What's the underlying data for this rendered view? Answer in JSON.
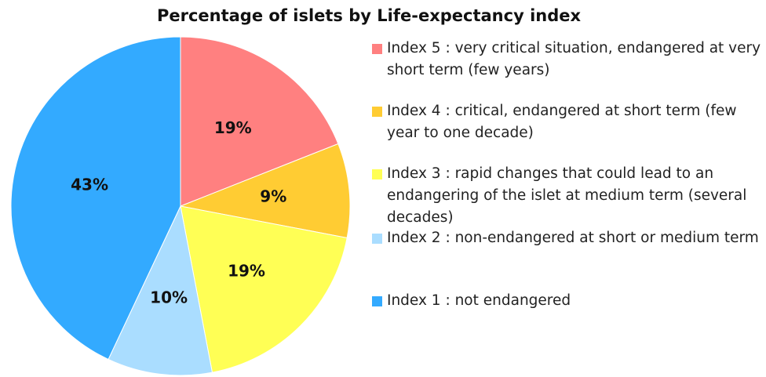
{
  "chart_data": {
    "type": "pie",
    "title": "Percentage of islets by Life-expectancy index",
    "categories": [
      "Index 5 : very critical situation, endangered at very short term (few years)",
      "Index 4 : critical, endangered at short term (few year to one decade)",
      "Index 3 : rapid changes that could lead to an endangering of the islet at medium term (several decades)",
      "Index 2 : non-endangered at short or medium term",
      "Index 1 : not endangered"
    ],
    "values": [
      19,
      9,
      19,
      10,
      43
    ],
    "value_labels": [
      "19%",
      "9%",
      "19%",
      "10%",
      "43%"
    ],
    "colors": [
      "#ff8080",
      "#ffcc33",
      "#ffff55",
      "#aaddff",
      "#33aaff"
    ]
  }
}
